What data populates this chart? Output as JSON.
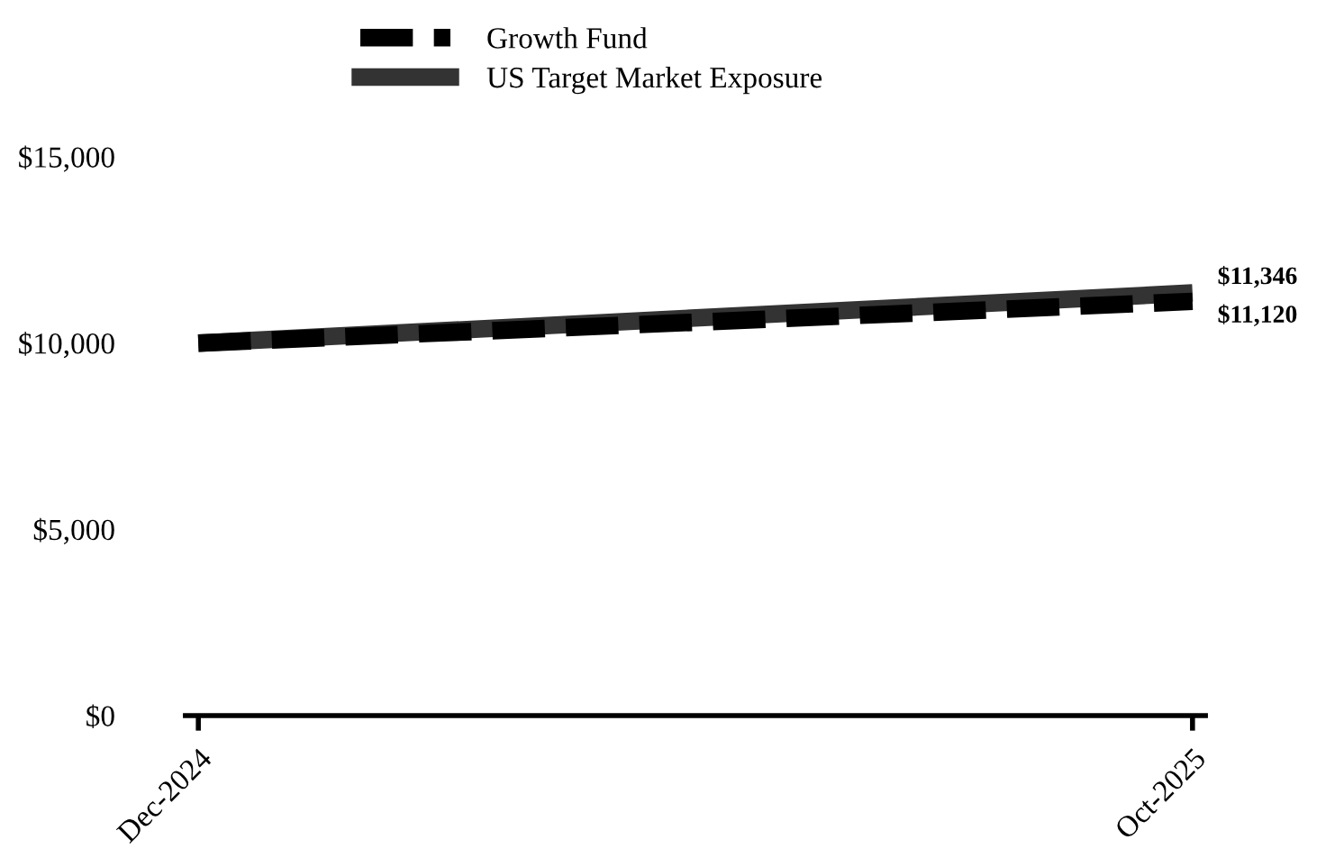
{
  "chart_data": {
    "type": "line",
    "categories": [
      "Dec-2024",
      "Oct-2025"
    ],
    "series": [
      {
        "name": "Growth Fund",
        "color": "#000000",
        "line_style": "dashed",
        "values": [
          10000,
          11120
        ],
        "value_labels": [
          null,
          "$11,120"
        ]
      },
      {
        "name": "US Target Market Exposure",
        "color": "#333333",
        "line_style": "solid",
        "values": [
          10000,
          11346
        ],
        "value_labels": [
          null,
          "$11,346"
        ]
      }
    ],
    "ylim": [
      0,
      15000
    ],
    "yticks": [
      {
        "value": 0,
        "label": "$0"
      },
      {
        "value": 5000,
        "label": "$5,000"
      },
      {
        "value": 10000,
        "label": "$10,000"
      },
      {
        "value": 15000,
        "label": "$15,000"
      }
    ],
    "grid": false,
    "legend": "top",
    "marker": "none"
  }
}
